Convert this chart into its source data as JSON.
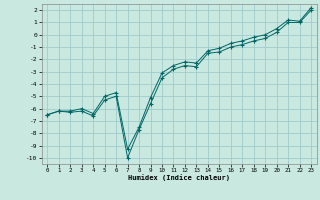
{
  "title": "",
  "xlabel": "Humidex (Indice chaleur)",
  "ylabel": "",
  "xlim": [
    -0.5,
    23.5
  ],
  "ylim": [
    -10.5,
    2.5
  ],
  "yticks": [
    2,
    1,
    0,
    -1,
    -2,
    -3,
    -4,
    -5,
    -6,
    -7,
    -8,
    -9,
    -10
  ],
  "xticks": [
    0,
    1,
    2,
    3,
    4,
    5,
    6,
    7,
    8,
    9,
    10,
    11,
    12,
    13,
    14,
    15,
    16,
    17,
    18,
    19,
    20,
    21,
    22,
    23
  ],
  "background_color": "#c8e8e0",
  "grid_color": "#a0cccc",
  "line_color": "#006666",
  "line1_x": [
    0,
    1,
    2,
    3,
    4,
    5,
    6,
    7,
    8,
    9,
    10,
    11,
    12,
    13,
    14,
    15,
    16,
    17,
    18,
    19,
    20,
    21,
    22,
    23
  ],
  "line1_y": [
    -6.5,
    -6.2,
    -6.3,
    -6.2,
    -6.6,
    -5.3,
    -5.0,
    -10.0,
    -7.7,
    -5.6,
    -3.5,
    -2.8,
    -2.5,
    -2.6,
    -1.5,
    -1.4,
    -1.0,
    -0.8,
    -0.5,
    -0.3,
    0.2,
    1.0,
    1.0,
    2.0
  ],
  "line2_x": [
    0,
    1,
    2,
    3,
    4,
    5,
    6,
    7,
    8,
    9,
    10,
    11,
    12,
    13,
    14,
    15,
    16,
    17,
    18,
    19,
    20,
    21,
    22,
    23
  ],
  "line2_y": [
    -6.5,
    -6.2,
    -6.2,
    -6.0,
    -6.4,
    -5.0,
    -4.7,
    -9.3,
    -7.5,
    -5.1,
    -3.1,
    -2.5,
    -2.2,
    -2.3,
    -1.3,
    -1.1,
    -0.7,
    -0.5,
    -0.2,
    0.0,
    0.5,
    1.2,
    1.1,
    2.2
  ]
}
